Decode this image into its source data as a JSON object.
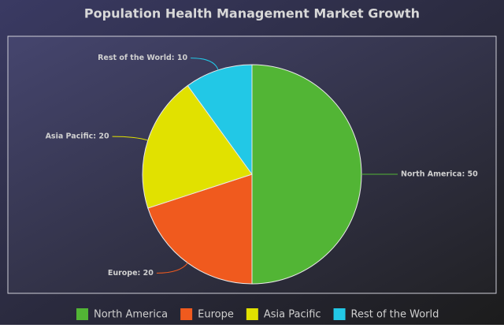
{
  "chart_data": {
    "type": "pie",
    "title": "Population Health Management Market Growth",
    "categories": [
      "North America",
      "Europe",
      "Asia Pacific",
      "Rest of the World"
    ],
    "values": [
      50,
      20,
      20,
      10
    ],
    "value_labels": [
      "North America: 50",
      "Europe: 20",
      "Asia Pacific: 20",
      "Rest of the World: 10"
    ],
    "colors": [
      "#52b535",
      "#f05a1e",
      "#e1e100",
      "#22c8e6"
    ],
    "legend": "bottom"
  }
}
